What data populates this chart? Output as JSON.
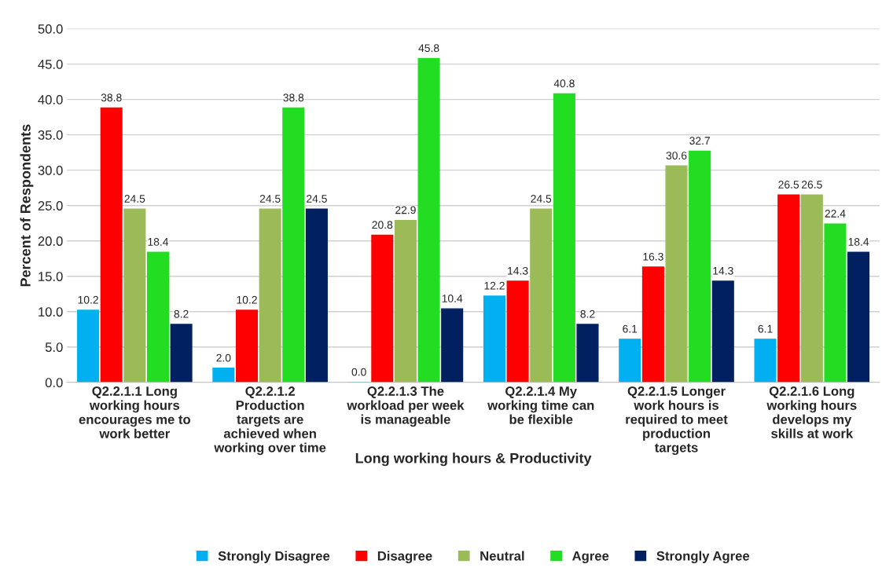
{
  "chart_data": {
    "type": "bar",
    "xlabel": "Long working hours & Productivity",
    "ylabel": "Percent of Respondents",
    "categories": [
      "Q2.2.1.1 Long working hours encourages me to work better",
      "Q2.2.1.2 Production targets are achieved when working over time",
      "Q2.2.1.3 The workload per week is manageable",
      "Q2.2.1.4 My working time can be flexible",
      "Q2.2.1.5 Longer work hours is required to meet production targets",
      "Q2.2.1.6 Long working hours develops my skills at work"
    ],
    "series": [
      {
        "name": "Strongly Disagree",
        "color": "#00b0f0",
        "values": [
          10.2,
          2.0,
          0.0,
          12.2,
          6.1,
          6.1
        ],
        "value_labels": [
          "10.2",
          "2.0",
          "0.0",
          "12.2",
          "6.1",
          "6.1"
        ]
      },
      {
        "name": "Disagree",
        "color": "#ff0000",
        "values": [
          38.8,
          10.2,
          20.8,
          14.3,
          16.3,
          26.5
        ],
        "value_labels": [
          "38.8",
          "10.2",
          "20.8",
          "14.3",
          "16.3",
          "26.5"
        ]
      },
      {
        "name": "Neutral",
        "color": "#9bbb59",
        "values": [
          24.5,
          24.5,
          22.9,
          24.5,
          30.6,
          26.5
        ],
        "value_labels": [
          "24.5",
          "24.5",
          "22.9",
          "24.5",
          "30.6",
          "26.5"
        ]
      },
      {
        "name": "Agree",
        "color": "#22dd22",
        "values": [
          18.4,
          38.8,
          45.8,
          40.8,
          32.7,
          22.4
        ],
        "value_labels": [
          "18.4",
          "38.8",
          "45.8",
          "40.8",
          "32.7",
          "22.4"
        ]
      },
      {
        "name": "Strongly Agree",
        "color": "#002060",
        "values": [
          8.2,
          24.5,
          10.4,
          8.2,
          14.3,
          18.4
        ],
        "value_labels": [
          "8.2",
          "24.5",
          "10.4",
          "8.2",
          "14.3",
          "18.4"
        ]
      }
    ],
    "ylim": [
      0,
      50
    ],
    "yticks": [
      {
        "value": 0,
        "label": "0.0"
      },
      {
        "value": 5,
        "label": "5.0"
      },
      {
        "value": 10,
        "label": "10.0"
      },
      {
        "value": 15,
        "label": "15.0"
      },
      {
        "value": 20,
        "label": "20.0"
      },
      {
        "value": 25,
        "label": "25.0"
      },
      {
        "value": 30,
        "label": "30.0"
      },
      {
        "value": 35,
        "label": "35.0"
      },
      {
        "value": 40,
        "label": "40.0"
      },
      {
        "value": 45,
        "label": "45.0"
      },
      {
        "value": 50,
        "label": "50.0"
      }
    ],
    "grid": "y",
    "legend": "bottom"
  }
}
